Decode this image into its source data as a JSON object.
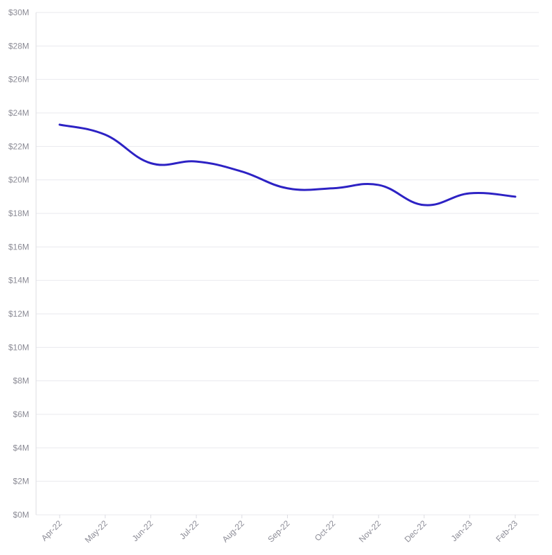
{
  "colors": {
    "series": "#2d22c4",
    "grid": "#e9e9ee",
    "tick_text": "#8c8c96",
    "background": "#ffffff"
  },
  "chart_data": {
    "type": "line",
    "title": "",
    "xlabel": "",
    "ylabel": "",
    "grid": true,
    "legend": "none",
    "ylim": [
      0,
      30
    ],
    "y_tick_values": [
      0,
      2,
      4,
      6,
      8,
      10,
      12,
      14,
      16,
      18,
      20,
      22,
      24,
      26,
      28,
      30
    ],
    "y_tick_labels": [
      "$0M",
      "$2M",
      "$4M",
      "$6M",
      "$8M",
      "$10M",
      "$12M",
      "$14M",
      "$16M",
      "$18M",
      "$20M",
      "$22M",
      "$24M",
      "$26M",
      "$28M",
      "$30M"
    ],
    "categories": [
      "Apr-22",
      "May-22",
      "Jun-22",
      "Jul-22",
      "Aug-22",
      "Sep-22",
      "Oct-22",
      "Nov-22",
      "Dec-22",
      "Jan-23",
      "Feb-23"
    ],
    "series": [
      {
        "values": [
          23.3,
          22.7,
          21.0,
          21.1,
          20.5,
          19.5,
          19.5,
          19.7,
          18.5,
          19.2,
          19.0
        ]
      }
    ]
  }
}
